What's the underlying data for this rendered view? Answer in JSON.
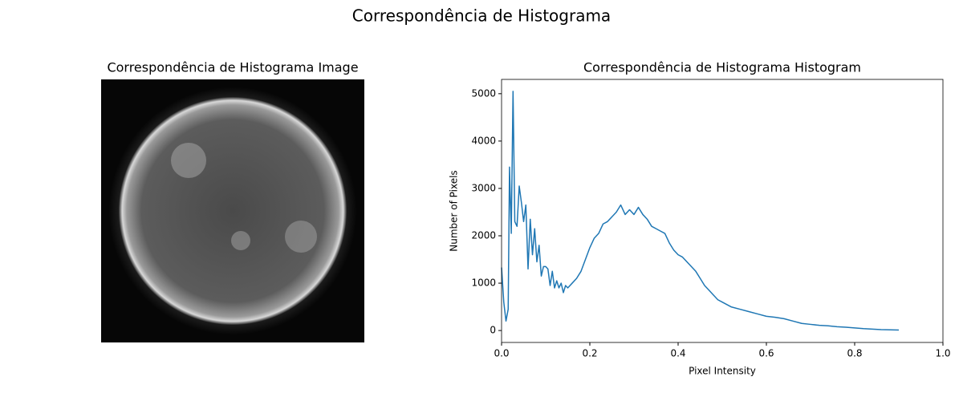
{
  "title": "Correspondência de Histograma",
  "chart_data": [
    {
      "type": "image",
      "title": "Correspondência de Histograma Image"
    },
    {
      "type": "line",
      "title": "Correspondência de Histograma Histogram",
      "xlabel": "Pixel Intensity",
      "ylabel": "Number of Pixels",
      "xlim": [
        0,
        1
      ],
      "ylim": [
        -252,
        5302
      ],
      "xticks": [
        {
          "value": 0,
          "label": "0.0"
        },
        0.2,
        0.4,
        0.6,
        0.8,
        {
          "value": 1,
          "label": "1.0"
        }
      ],
      "yticks": [
        0,
        1000,
        2000,
        3000,
        4000,
        5000
      ],
      "color": "#1f77b4",
      "x": [
        0,
        0.005,
        0.01,
        0.015,
        0.018,
        0.022,
        0.026,
        0.03,
        0.035,
        0.04,
        0.045,
        0.05,
        0.055,
        0.06,
        0.065,
        0.07,
        0.075,
        0.08,
        0.085,
        0.09,
        0.095,
        0.1,
        0.105,
        0.11,
        0.115,
        0.12,
        0.125,
        0.13,
        0.135,
        0.14,
        0.145,
        0.15,
        0.16,
        0.17,
        0.18,
        0.19,
        0.2,
        0.21,
        0.22,
        0.23,
        0.24,
        0.25,
        0.26,
        0.27,
        0.28,
        0.29,
        0.3,
        0.31,
        0.32,
        0.33,
        0.34,
        0.35,
        0.36,
        0.37,
        0.38,
        0.39,
        0.4,
        0.41,
        0.42,
        0.43,
        0.44,
        0.45,
        0.46,
        0.47,
        0.48,
        0.49,
        0.5,
        0.52,
        0.54,
        0.56,
        0.58,
        0.6,
        0.62,
        0.64,
        0.66,
        0.68,
        0.7,
        0.72,
        0.74,
        0.76,
        0.78,
        0.8,
        0.82,
        0.84,
        0.86,
        0.88,
        0.9
      ],
      "values": [
        1330,
        600,
        200,
        450,
        3450,
        2050,
        5050,
        2300,
        2200,
        3050,
        2700,
        2300,
        2650,
        1300,
        2350,
        1600,
        2150,
        1450,
        1800,
        1150,
        1350,
        1350,
        1300,
        950,
        1250,
        900,
        1050,
        900,
        1000,
        800,
        950,
        900,
        1000,
        1100,
        1250,
        1500,
        1750,
        1950,
        2050,
        2250,
        2300,
        2400,
        2500,
        2650,
        2450,
        2550,
        2450,
        2600,
        2450,
        2350,
        2200,
        2150,
        2100,
        2050,
        1850,
        1700,
        1600,
        1550,
        1450,
        1350,
        1250,
        1100,
        950,
        850,
        750,
        650,
        600,
        500,
        450,
        400,
        350,
        300,
        280,
        250,
        200,
        150,
        130,
        110,
        100,
        80,
        70,
        55,
        40,
        30,
        20,
        15,
        10
      ]
    }
  ]
}
